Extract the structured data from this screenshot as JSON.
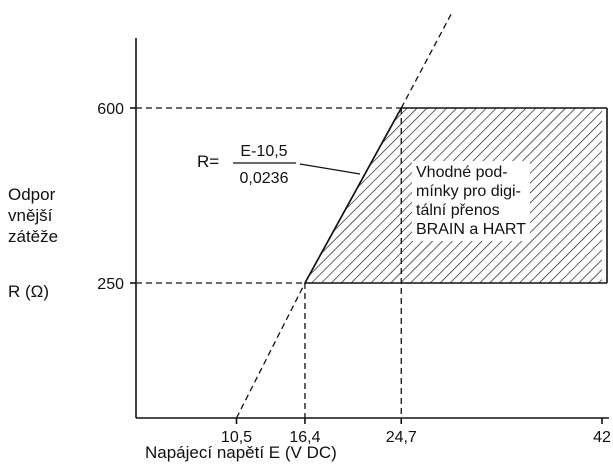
{
  "chart_data": {
    "type": "line",
    "title": "",
    "xlabel": "Napájecí napětí E (V DC)",
    "ylabel_lines": [
      "Odpor",
      "vnější",
      "zátěže"
    ],
    "ylabel_symbol": "R (Ω)",
    "xlim": [
      0,
      42
    ],
    "ylim": [
      0,
      600
    ],
    "x_ticks": [
      {
        "value": 10.5,
        "label": "10,5"
      },
      {
        "value": 16.4,
        "label": "16,4"
      },
      {
        "value": 24.7,
        "label": "24,7"
      },
      {
        "value": 42,
        "label": "42"
      }
    ],
    "y_ticks": [
      {
        "value": 250,
        "label": "250"
      },
      {
        "value": 600,
        "label": "600"
      }
    ],
    "series": [
      {
        "formula": {
          "lhs": "R=",
          "numerator": "E-10,5",
          "denominator": "0,0236"
        },
        "x": [
          10.5,
          16.4,
          24.7
        ],
        "y": [
          0,
          250,
          600
        ]
      }
    ],
    "shaded_region": {
      "pattern": "hatched",
      "polygon": [
        [
          16.4,
          250
        ],
        [
          42,
          250
        ],
        [
          42,
          600
        ],
        [
          24.7,
          600
        ]
      ],
      "label_lines": [
        "Vhodné pod-",
        "mínky pro digi-",
        "tální přenos",
        "BRAIN a HART"
      ]
    },
    "reference_lines": [
      {
        "axis": "y",
        "value": 600,
        "style": "dashed"
      },
      {
        "axis": "y",
        "value": 250,
        "style": "dashed"
      },
      {
        "axis": "x",
        "value": 16.4,
        "style": "dashed"
      },
      {
        "axis": "x",
        "value": 24.7,
        "style": "dashed"
      }
    ],
    "grid": false,
    "legend": "none"
  }
}
